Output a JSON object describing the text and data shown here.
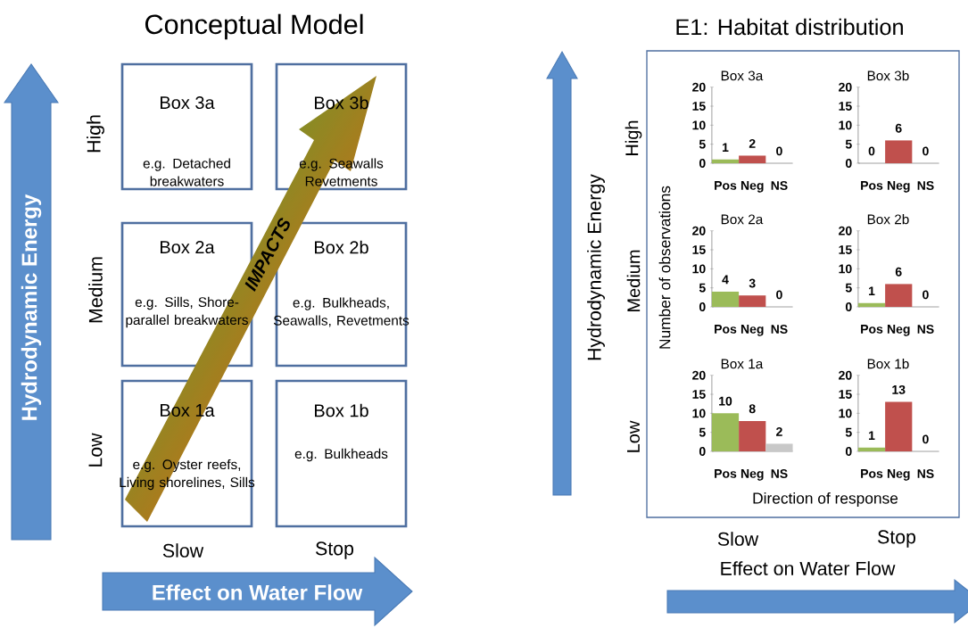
{
  "chart_data": [
    {
      "type": "other",
      "title": "Conceptual Model",
      "xlabel": "Effect on Water Flow",
      "ylabel": "Hydrodynamic Energy",
      "categories": [
        "Slow",
        "Stop"
      ],
      "annotations": [
        "High",
        "Medium",
        "Low",
        "Box 3a",
        "e.g. Detached breakwaters",
        "Box 3b",
        "e.g. Seawalls Revetments",
        "Box 2a",
        "e.g. Sills, Shore-parallel breakwaters",
        "Box 2b",
        "e.g. Bulkheads, Seawalls, Revetments",
        "Box 1a",
        "e.g. Oyster reefs, Living shorelines, Sills",
        "Box 1b",
        "e.g. Bulkheads",
        "IMPACTS"
      ]
    },
    {
      "type": "other",
      "title": "E1: Habitat distribution",
      "xlabel": "Effect on Water Flow",
      "ylabel": "Hydrodynamic Energy",
      "categories": [
        "Slow",
        "Stop"
      ],
      "annotations": [
        "High",
        "Medium",
        "Low",
        "Number of observations",
        "Direction of response"
      ]
    },
    {
      "type": "bar",
      "title": "Box 3a",
      "categories": [
        "Pos",
        "Neg",
        "NS"
      ],
      "values": [
        1,
        2,
        0
      ],
      "colors": [
        "#9bbb59",
        "#c0504d",
        "#c8c8c8"
      ],
      "ylim": [
        0,
        20
      ],
      "yticks": [
        0,
        5,
        10,
        15,
        20
      ],
      "data_labels": true
    },
    {
      "type": "bar",
      "title": "Box 3b",
      "categories": [
        "Pos",
        "Neg",
        "NS"
      ],
      "values": [
        0,
        6,
        0
      ],
      "colors": [
        "#9bbb59",
        "#c0504d",
        "#c8c8c8"
      ],
      "ylim": [
        0,
        20
      ],
      "yticks": [
        0,
        5,
        10,
        15,
        20
      ],
      "data_labels": true
    },
    {
      "type": "bar",
      "title": "Box 2a",
      "categories": [
        "Pos",
        "Neg",
        "NS"
      ],
      "values": [
        4,
        3,
        0
      ],
      "colors": [
        "#9bbb59",
        "#c0504d",
        "#c8c8c8"
      ],
      "ylim": [
        0,
        20
      ],
      "yticks": [
        0,
        5,
        10,
        15,
        20
      ],
      "data_labels": true
    },
    {
      "type": "bar",
      "title": "Box 2b",
      "categories": [
        "Pos",
        "Neg",
        "NS"
      ],
      "values": [
        1,
        6,
        0
      ],
      "colors": [
        "#9bbb59",
        "#c0504d",
        "#c8c8c8"
      ],
      "ylim": [
        0,
        20
      ],
      "yticks": [
        0,
        5,
        10,
        15,
        20
      ],
      "data_labels": true
    },
    {
      "type": "bar",
      "title": "Box 1a",
      "categories": [
        "Pos",
        "Neg",
        "NS"
      ],
      "values": [
        10,
        8,
        2
      ],
      "colors": [
        "#9bbb59",
        "#c0504d",
        "#c8c8c8"
      ],
      "ylim": [
        0,
        20
      ],
      "yticks": [
        0,
        5,
        10,
        15,
        20
      ],
      "data_labels": true
    },
    {
      "type": "bar",
      "title": "Box 1b",
      "categories": [
        "Pos",
        "Neg",
        "NS"
      ],
      "values": [
        1,
        13,
        0
      ],
      "colors": [
        "#9bbb59",
        "#c0504d",
        "#c8c8c8"
      ],
      "ylim": [
        0,
        20
      ],
      "yticks": [
        0,
        5,
        10,
        15,
        20
      ],
      "data_labels": true
    }
  ]
}
